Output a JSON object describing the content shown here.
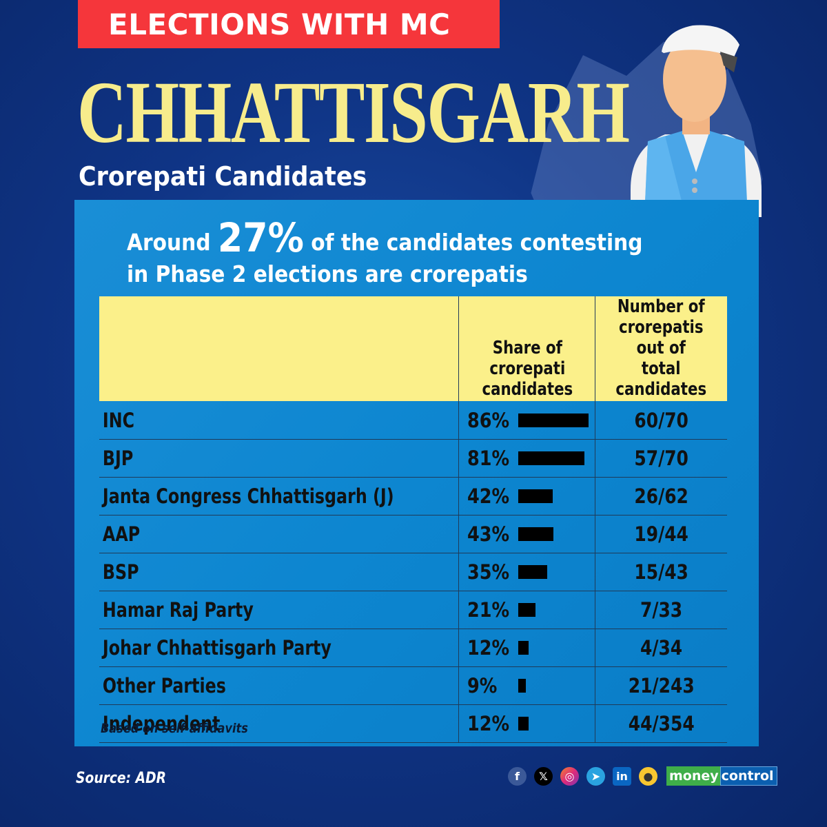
{
  "banner": {
    "label": "ELECTIONS WITH MC",
    "color": "#f5363b"
  },
  "title": "CHHATTISGARH",
  "subtitle": "Crorepati Candidates",
  "headline": {
    "prefix": "Around",
    "highlight": "27%",
    "suffix": "of the candidates contesting",
    "line2": "in Phase 2 elections are crorepatis"
  },
  "table": {
    "headers": [
      "",
      "Share of crorepati candidates",
      "Number of crorepatis out of total candidates"
    ],
    "header_lines": {
      "col2": [
        "Share of",
        "crorepati",
        "candidates"
      ],
      "col3": [
        "Number of",
        "crorepatis out of",
        "total candidates"
      ]
    },
    "rows": [
      {
        "party": "INC",
        "share": "86%",
        "share_value": 86,
        "count": "60/70"
      },
      {
        "party": "BJP",
        "share": "81%",
        "share_value": 81,
        "count": "57/70"
      },
      {
        "party": "Janta Congress Chhattisgarh (J)",
        "share": "42%",
        "share_value": 42,
        "count": "26/62"
      },
      {
        "party": "AAP",
        "share": "43%",
        "share_value": 43,
        "count": "19/44"
      },
      {
        "party": "BSP",
        "share": "35%",
        "share_value": 35,
        "count": "15/43"
      },
      {
        "party": "Hamar Raj Party",
        "share": "21%",
        "share_value": 21,
        "count": "7/33"
      },
      {
        "party": "Johar Chhattisgarh Party",
        "share": "12%",
        "share_value": 12,
        "count": "4/34"
      },
      {
        "party": "Other Parties",
        "share": "9%",
        "share_value": 9,
        "count": "21/243"
      },
      {
        "party": "Independent",
        "share": "12%",
        "share_value": 12,
        "count": "44/354"
      }
    ],
    "note": "Based on self-affidavits"
  },
  "footer": {
    "source": "Source: ADR",
    "social_icons": [
      "facebook-icon",
      "x-icon",
      "instagram-icon",
      "telegram-icon",
      "linkedin-icon",
      "koo-icon"
    ],
    "brand_part1": "money",
    "brand_part2": "control"
  },
  "colors": {
    "background": "#0f3485",
    "panel": "#0d86d0",
    "title": "#f7ec8c",
    "header_bg": "#fbf08a",
    "bar": "#000000"
  },
  "chart_data": {
    "type": "table",
    "title": "CHHATTISGARH — Crorepati Candidates",
    "subtitle": "Around 27% of the candidates contesting in Phase 2 elections are crorepatis",
    "columns": [
      "Party",
      "Share of crorepati candidates",
      "Number of crorepatis out of total candidates"
    ],
    "categories": [
      "INC",
      "BJP",
      "Janta Congress Chhattisgarh (J)",
      "AAP",
      "BSP",
      "Hamar Raj Party",
      "Johar Chhattisgarh Party",
      "Other Parties",
      "Independent"
    ],
    "values": [
      86,
      81,
      42,
      43,
      35,
      21,
      12,
      9,
      12
    ],
    "crorepatis": [
      60,
      57,
      26,
      19,
      15,
      7,
      4,
      21,
      44
    ],
    "total_candidates": [
      70,
      70,
      62,
      44,
      43,
      33,
      34,
      243,
      354
    ],
    "unit": "%",
    "note": "Based on self-affidavits",
    "source": "ADR"
  }
}
